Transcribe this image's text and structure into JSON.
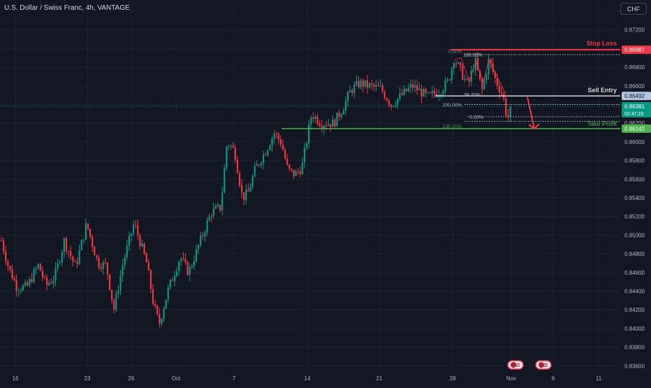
{
  "header": {
    "symbol_title": "U.S. Dollar / Swiss Franc, 4h, VANTAGE"
  },
  "currency_button": {
    "label": "CHF"
  },
  "price_axis": {
    "ticks": [
      "0.87400",
      "0.87200",
      "0.87000",
      "0.86800",
      "0.86600",
      "0.86400",
      "0.86200",
      "0.86000",
      "0.85800",
      "0.85600",
      "0.85400",
      "0.85200",
      "0.85000",
      "0.84800",
      "0.84600",
      "0.84400",
      "0.84200",
      "0.84000",
      "0.83800",
      "0.83600"
    ],
    "badges": {
      "stop_loss": {
        "value": "0.86987",
        "color": "#f23645"
      },
      "sell_entry": {
        "value": "0.86492",
        "color": "#b2c6e2"
      },
      "current": {
        "value": "0.86381",
        "countdown": "02:47:23",
        "color": "#089981"
      },
      "take_profit": {
        "value": "0.86142",
        "color": "#4caf50"
      }
    }
  },
  "time_axis": {
    "labels": [
      "16",
      "23",
      "26",
      "Oct",
      "7",
      "14",
      "21",
      "28",
      "Nov",
      "6",
      "11"
    ]
  },
  "annotations": {
    "stop_loss_label": "Stop Loss",
    "sell_entry_label": "Sell Entry",
    "take_profit_label": "Take Profit"
  },
  "fib_a": {
    "levels": [
      "0.00%",
      "100.00%",
      "138.20%"
    ]
  },
  "fib_b": {
    "levels": [
      "100.00%",
      "38.20%",
      "0.00%"
    ]
  },
  "colors": {
    "up": "#089981",
    "down": "#f23645",
    "background": "#131722",
    "grid": "#1e222d"
  },
  "chart_data": {
    "type": "candlestick",
    "title": "U.S. Dollar / Swiss Franc, 4h, VANTAGE",
    "ylim": [
      0.8355,
      0.8752
    ],
    "x_ticks": [
      "16",
      "23",
      "26",
      "Oct",
      "7",
      "14",
      "21",
      "28",
      "Nov",
      "6",
      "11"
    ],
    "anchors": [
      [
        0,
        0.85
      ],
      [
        12,
        0.8466
      ],
      [
        24,
        0.8445
      ],
      [
        38,
        0.8444
      ],
      [
        55,
        0.8468
      ],
      [
        66,
        0.8446
      ],
      [
        78,
        0.8455
      ],
      [
        92,
        0.8494
      ],
      [
        108,
        0.8466
      ],
      [
        124,
        0.8512
      ],
      [
        140,
        0.847
      ],
      [
        152,
        0.8468
      ],
      [
        163,
        0.842
      ],
      [
        176,
        0.847
      ],
      [
        192,
        0.8513
      ],
      [
        210,
        0.847
      ],
      [
        220,
        0.8425
      ],
      [
        228,
        0.8405
      ],
      [
        240,
        0.844
      ],
      [
        258,
        0.8477
      ],
      [
        270,
        0.846
      ],
      [
        290,
        0.85
      ],
      [
        302,
        0.8524
      ],
      [
        316,
        0.853
      ],
      [
        325,
        0.86
      ],
      [
        336,
        0.859
      ],
      [
        347,
        0.854
      ],
      [
        355,
        0.8545
      ],
      [
        365,
        0.857
      ],
      [
        380,
        0.859
      ],
      [
        393,
        0.861
      ],
      [
        403,
        0.8598
      ],
      [
        412,
        0.857
      ],
      [
        422,
        0.8565
      ],
      [
        432,
        0.8572
      ],
      [
        446,
        0.863
      ],
      [
        460,
        0.862
      ],
      [
        478,
        0.862
      ],
      [
        492,
        0.8638
      ],
      [
        502,
        0.8655
      ],
      [
        515,
        0.8663
      ],
      [
        528,
        0.866
      ],
      [
        545,
        0.8657
      ],
      [
        560,
        0.864
      ],
      [
        575,
        0.865
      ],
      [
        590,
        0.866
      ],
      [
        600,
        0.8655
      ],
      [
        612,
        0.8648
      ],
      [
        630,
        0.8655
      ],
      [
        642,
        0.8665
      ],
      [
        650,
        0.869
      ],
      [
        660,
        0.8675
      ],
      [
        670,
        0.866
      ],
      [
        680,
        0.8688
      ],
      [
        690,
        0.8655
      ],
      [
        700,
        0.8688
      ],
      [
        710,
        0.8665
      ],
      [
        720,
        0.865
      ],
      [
        726,
        0.8625
      ],
      [
        733,
        0.8638
      ]
    ],
    "series": [
      {
        "name": "Stop Loss",
        "value": 0.86987
      },
      {
        "name": "Sell Entry",
        "value": 0.86492
      },
      {
        "name": "Take Profit",
        "value": 0.86142
      }
    ],
    "current_price": 0.86381,
    "projection": {
      "from": 0.8648,
      "to": 0.8614
    }
  }
}
